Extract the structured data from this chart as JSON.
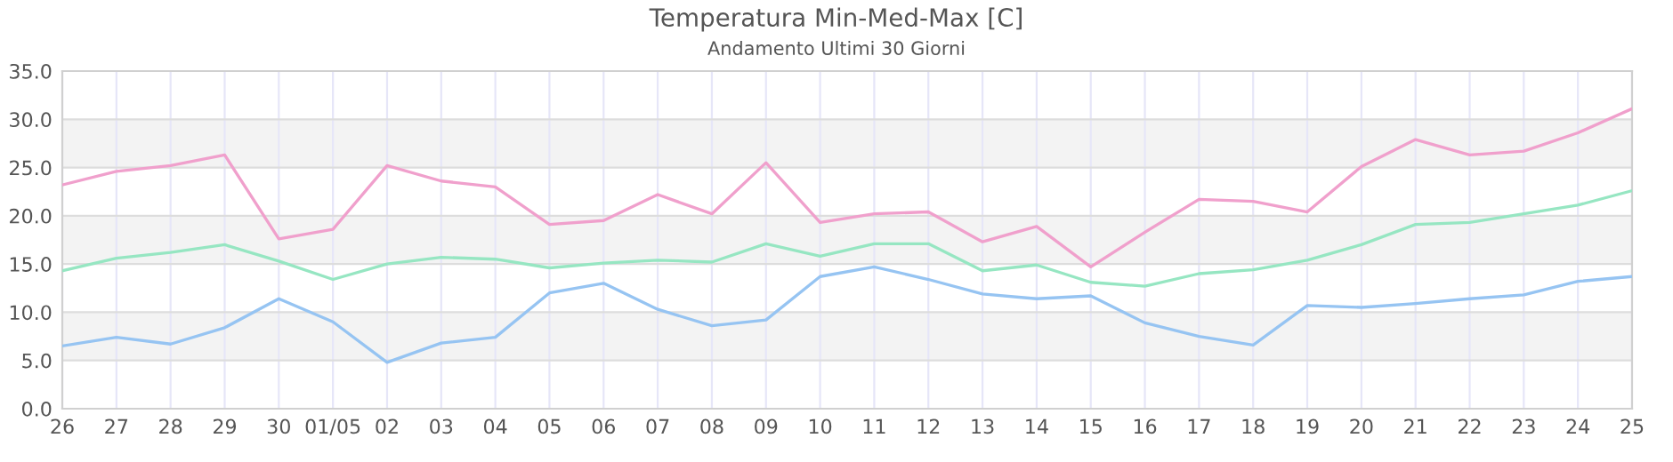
{
  "chart_data": {
    "type": "line",
    "title": "Temperatura Min-Med-Max [C]",
    "subtitle": "Andamento Ultimi 30 Giorni",
    "categories": [
      "26",
      "27",
      "28",
      "29",
      "30",
      "01/05",
      "02",
      "03",
      "04",
      "05",
      "06",
      "07",
      "08",
      "09",
      "10",
      "11",
      "12",
      "13",
      "14",
      "15",
      "16",
      "17",
      "18",
      "19",
      "20",
      "21",
      "22",
      "23",
      "24",
      "25"
    ],
    "series": [
      {
        "color": "#f0a0cc",
        "values": [
          23.2,
          24.6,
          25.2,
          26.3,
          17.6,
          18.6,
          25.2,
          23.6,
          23.0,
          19.1,
          19.5,
          22.2,
          20.2,
          25.5,
          19.3,
          20.2,
          20.4,
          17.3,
          18.9,
          14.7,
          18.3,
          21.7,
          21.5,
          20.4,
          25.1,
          27.9,
          26.3,
          26.7,
          28.6,
          31.1
        ]
      },
      {
        "color": "#96e6c2",
        "values": [
          14.3,
          15.6,
          16.2,
          17.0,
          15.3,
          13.4,
          15.0,
          15.7,
          15.5,
          14.6,
          15.1,
          15.4,
          15.2,
          17.1,
          15.8,
          17.1,
          17.1,
          14.3,
          14.9,
          13.1,
          12.7,
          14.0,
          14.4,
          15.4,
          17.0,
          19.1,
          19.3,
          20.2,
          21.1,
          22.6
        ]
      },
      {
        "color": "#96c4f2",
        "values": [
          6.5,
          7.4,
          6.7,
          8.4,
          11.4,
          9.0,
          4.8,
          6.8,
          7.4,
          12.0,
          13.0,
          10.3,
          8.6,
          9.2,
          13.7,
          14.7,
          13.4,
          11.9,
          11.4,
          11.7,
          8.9,
          7.5,
          6.6,
          10.7,
          10.5,
          10.9,
          11.4,
          11.8,
          13.2,
          13.7
        ]
      }
    ],
    "ylim": [
      0,
      35
    ],
    "yticks": [
      {
        "value": 0,
        "label": "0.0"
      },
      {
        "value": 5,
        "label": "5.0"
      },
      {
        "value": 10,
        "label": "10.0"
      },
      {
        "value": 15,
        "label": "15.0"
      },
      {
        "value": 20,
        "label": "20.0"
      },
      {
        "value": 25,
        "label": "25.0"
      },
      {
        "value": 30,
        "label": "30.0"
      },
      {
        "value": 35,
        "label": "35.0"
      }
    ],
    "bands": [
      {
        "axis": "y",
        "from": 5,
        "to": 10,
        "color": "#f3f3f3"
      },
      {
        "axis": "y",
        "from": 15,
        "to": 20,
        "color": "#f3f3f3"
      },
      {
        "axis": "y",
        "from": 25,
        "to": 30,
        "color": "#f3f3f3"
      }
    ],
    "grid": true,
    "legend": false,
    "marker": "none",
    "line_style": "solid"
  }
}
